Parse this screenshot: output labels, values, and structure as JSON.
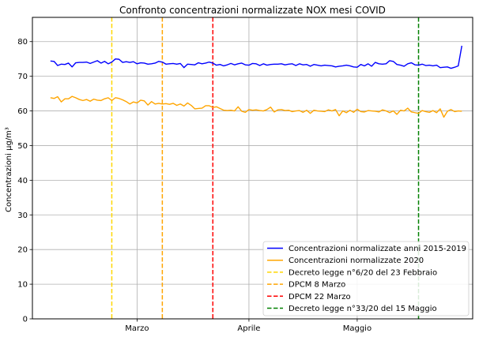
{
  "chart_data": {
    "type": "line",
    "title": "Confronto concentrazioni normalizzate NOX mesi COVID",
    "xlabel": "",
    "ylabel": "Concentrazioni µg/m³",
    "xlim": [
      "2020-02-01",
      "2020-06-02"
    ],
    "ylim": [
      0,
      87
    ],
    "yticks": [
      0,
      10,
      20,
      30,
      40,
      50,
      60,
      70,
      80
    ],
    "xticks": [
      {
        "date": "2020-03-01",
        "label": "Marzo"
      },
      {
        "date": "2020-04-01",
        "label": "Aprile"
      },
      {
        "date": "2020-05-01",
        "label": "Maggio"
      }
    ],
    "grid": true,
    "legend_position": "lower-right",
    "x_start_date": "2020-02-01",
    "series": [
      {
        "name": "Concentrazioni normalizzate anni 2015-2019",
        "color": "#0000ff",
        "values": [
          74.4,
          74.3,
          73.1,
          73.5,
          73.4,
          73.8,
          72.7,
          73.9,
          74.0,
          74.0,
          74.1,
          73.7,
          74.1,
          74.5,
          73.8,
          74.3,
          73.6,
          74.1,
          75.0,
          74.9,
          74.0,
          74.2,
          74.0,
          74.2,
          73.6,
          73.9,
          73.8,
          73.5,
          73.6,
          73.8,
          74.3,
          74.1,
          73.5,
          73.6,
          73.7,
          73.5,
          73.7,
          72.5,
          73.5,
          73.4,
          73.3,
          73.9,
          73.6,
          73.8,
          74.1,
          73.8,
          73.2,
          73.4,
          73.0,
          73.3,
          73.7,
          73.3,
          73.6,
          73.8,
          73.3,
          73.2,
          73.7,
          73.6,
          73.1,
          73.6,
          73.2,
          73.4,
          73.5,
          73.5,
          73.6,
          73.3,
          73.5,
          73.6,
          73.1,
          73.6,
          73.3,
          73.4,
          72.9,
          73.4,
          73.2,
          73.0,
          73.2,
          73.1,
          73.0,
          72.7,
          72.9,
          73.0,
          73.2,
          73.0,
          72.7,
          72.6,
          73.4,
          73.0,
          73.6,
          72.9,
          74.0,
          73.6,
          73.5,
          73.6,
          74.5,
          74.3,
          73.4,
          73.2,
          72.9,
          73.6,
          73.9,
          73.3,
          73.2,
          73.5,
          73.1,
          73.2,
          73.0,
          73.2,
          72.5,
          72.6,
          72.7,
          72.3,
          72.6,
          73.0,
          78.8
        ]
      },
      {
        "name": "Concentrazioni normalizzate 2020",
        "color": "#ffa500",
        "values": [
          63.8,
          63.6,
          64.1,
          62.6,
          63.5,
          63.5,
          64.2,
          63.8,
          63.3,
          63.0,
          63.3,
          62.8,
          63.4,
          63.1,
          63.0,
          63.5,
          63.8,
          63.0,
          63.8,
          63.6,
          63.2,
          62.7,
          62.0,
          62.6,
          62.3,
          63.1,
          62.9,
          61.7,
          62.7,
          62.0,
          62.2,
          62.0,
          62.1,
          61.9,
          62.2,
          61.6,
          62.0,
          61.4,
          62.3,
          61.6,
          60.6,
          60.7,
          60.8,
          61.5,
          61.5,
          61.0,
          61.2,
          60.7,
          60.2,
          60.1,
          60.2,
          60.0,
          61.2,
          59.9,
          59.6,
          60.4,
          60.2,
          60.3,
          60.1,
          60.0,
          60.4,
          61.1,
          59.7,
          60.3,
          60.4,
          60.1,
          60.2,
          59.8,
          60.0,
          60.1,
          59.6,
          60.2,
          59.3,
          60.2,
          60.0,
          59.9,
          59.8,
          60.3,
          60.0,
          60.4,
          58.6,
          60.0,
          59.5,
          60.2,
          59.6,
          60.5,
          59.8,
          59.7,
          60.1,
          60.0,
          59.9,
          59.7,
          60.3,
          60.0,
          59.5,
          60.0,
          59.0,
          60.2,
          60.0,
          60.8,
          59.7,
          59.5,
          59.3,
          60.1,
          59.8,
          59.6,
          60.1,
          59.5,
          60.6,
          58.2,
          59.9,
          60.4,
          59.8,
          60.0,
          59.9
        ]
      }
    ],
    "vlines": [
      {
        "name": "Decreto legge n°6/20 del 23 Febbraio",
        "date": "2020-02-23",
        "color": "#ffd700"
      },
      {
        "name": "DPCM 8 Marzo",
        "date": "2020-03-08",
        "color": "#ffa500"
      },
      {
        "name": "DPCM 22 Marzo",
        "date": "2020-03-22",
        "color": "#ff0000"
      },
      {
        "name": "Decreto legge n°33/20 del 15 Maggio",
        "date": "2020-05-18",
        "color": "#008000"
      }
    ]
  }
}
